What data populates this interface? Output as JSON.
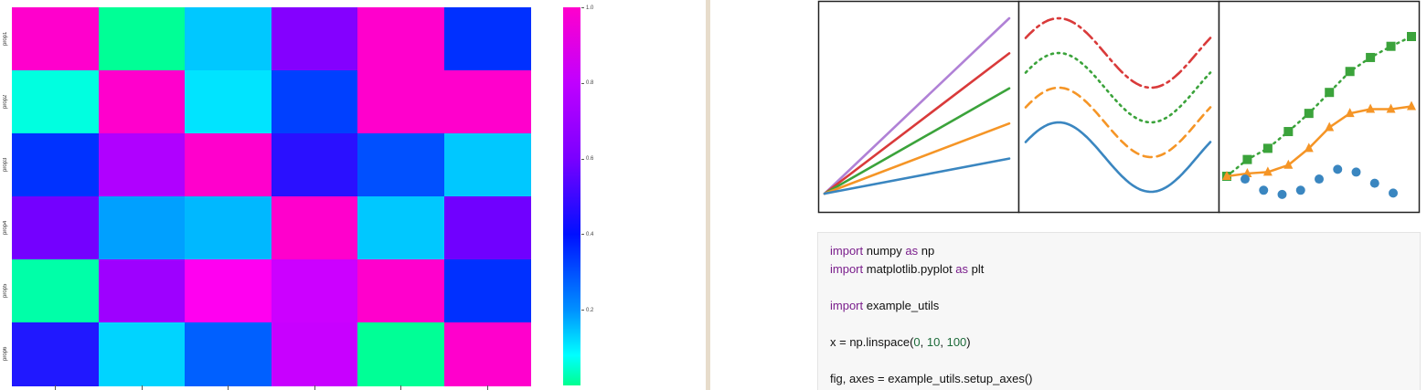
{
  "heatmap": {
    "row_labels": [
      "prop1",
      "prop2",
      "prop3",
      "prop4",
      "prop5",
      "prop6"
    ],
    "cells": [
      [
        "#ff00cc",
        "#00ff96",
        "#00c8ff",
        "#8400ff",
        "#ff00cc",
        "#0030ff"
      ],
      [
        "#00ffe0",
        "#ff00cc",
        "#00e4ff",
        "#0040ff",
        "#ff00cc",
        "#ff00cc"
      ],
      [
        "#0032ff",
        "#b000ff",
        "#ff00cc",
        "#2a10ff",
        "#0050ff",
        "#00c8ff"
      ],
      [
        "#7400ff",
        "#00a0ff",
        "#00b8ff",
        "#ff00cc",
        "#00c8ff",
        "#7000ff"
      ],
      [
        "#00ffa8",
        "#9e00ff",
        "#ff00f0",
        "#cc00ff",
        "#ff00cc",
        "#0030ff"
      ],
      [
        "#2018ff",
        "#00d4ff",
        "#0060ff",
        "#c800ff",
        "#00ff96",
        "#ff00cc"
      ]
    ],
    "colorbar": {
      "tick_labels": [
        "1.0",
        "0.8",
        "0.6",
        "0.4",
        "0.2"
      ],
      "tick_values": [
        1.0,
        0.8,
        0.6,
        0.4,
        0.2
      ],
      "min": 0.0,
      "max": 1.0
    }
  },
  "example_figure": {
    "panel1": {
      "lines": [
        {
          "color": "#b081d6",
          "end": 1.0
        },
        {
          "color": "#d93a3a",
          "end": 0.8
        },
        {
          "color": "#3ba33b",
          "end": 0.6
        },
        {
          "color": "#f59526",
          "end": 0.4
        },
        {
          "color": "#3a86c0",
          "end": 0.2
        }
      ]
    },
    "panel2": {
      "curves": [
        {
          "color": "#3a86c0",
          "style": "solid"
        },
        {
          "color": "#f59526",
          "style": "dashed"
        },
        {
          "color": "#3ba33b",
          "style": "dotted"
        },
        {
          "color": "#d93a3a",
          "style": "dashdot"
        }
      ]
    },
    "panel3": {
      "green_squares": [
        0.0,
        0.12,
        0.2,
        0.32,
        0.45,
        0.6,
        0.75,
        0.85,
        0.93,
        1.0
      ],
      "orange_triangles": [
        0.0,
        0.02,
        0.03,
        0.08,
        0.2,
        0.35,
        0.45,
        0.48,
        0.48,
        0.5
      ],
      "blue_circles": [
        -0.02,
        -0.1,
        -0.13,
        -0.1,
        -0.02,
        0.05,
        0.03,
        -0.05,
        -0.12
      ],
      "colors": {
        "square": "#3ba33b",
        "triangle": "#f59526",
        "circle": "#3a86c0"
      }
    }
  },
  "code": {
    "line1": {
      "kw1": "import",
      "mid": " numpy ",
      "kw2": "as",
      "end": " np"
    },
    "line2": {
      "kw1": "import",
      "mid": " matplotlib.pyplot ",
      "kw2": "as",
      "end": " plt"
    },
    "line3": {
      "kw1": "import",
      "end": " example_utils"
    },
    "line4": {
      "start": "x = np.linspace(",
      "n1": "0",
      "s1": ", ",
      "n2": "10",
      "s2": ", ",
      "n3": "100",
      "end": ")"
    },
    "line5": {
      "text": "fig, axes = example_utils.setup_axes()"
    }
  }
}
